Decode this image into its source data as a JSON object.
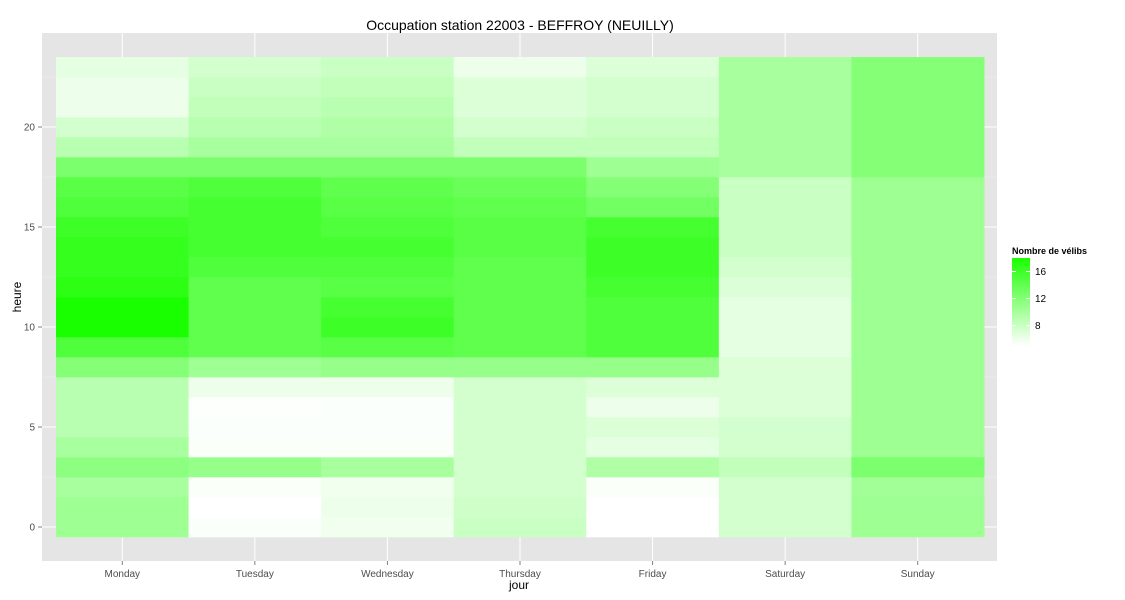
{
  "chart_data": {
    "type": "heatmap",
    "title": "Occupation station 22003 - BEFFROY (NEUILLY)",
    "xlabel": "jour",
    "ylabel": "heure",
    "x_categories": [
      "Monday",
      "Tuesday",
      "Wednesday",
      "Thursday",
      "Friday",
      "Saturday",
      "Sunday"
    ],
    "y_values": [
      0,
      1,
      2,
      3,
      4,
      5,
      6,
      7,
      8,
      9,
      10,
      11,
      12,
      13,
      14,
      15,
      16,
      17,
      18,
      19,
      20,
      21,
      22,
      23
    ],
    "y_ticks": [
      0,
      5,
      10,
      15,
      20
    ],
    "ylim": [
      -0.5,
      23.5
    ],
    "grid": true,
    "legend": {
      "title": "Nombre de vélibs",
      "position": "right",
      "ticks": [
        8,
        12,
        16
      ],
      "range": [
        5,
        18
      ],
      "color_low": "#ffffff",
      "color_high": "#1aff00"
    },
    "background_color": "#e5e5e5",
    "values": [
      [
        10.5,
        5.2,
        5.8,
        8.0,
        5.0,
        7.5,
        10.5
      ],
      [
        10.5,
        5.0,
        6.0,
        7.8,
        5.0,
        7.5,
        10.5
      ],
      [
        10.0,
        5.3,
        5.8,
        7.5,
        5.3,
        7.5,
        10.3
      ],
      [
        11.5,
        11.0,
        10.0,
        7.5,
        9.5,
        8.5,
        12.5
      ],
      [
        10.0,
        5.3,
        5.3,
        7.5,
        6.5,
        7.5,
        10.5
      ],
      [
        9.0,
        5.2,
        5.2,
        7.5,
        7.0,
        7.5,
        10.5
      ],
      [
        9.0,
        5.1,
        5.2,
        7.5,
        6.0,
        7.0,
        10.5
      ],
      [
        9.0,
        6.0,
        6.0,
        7.5,
        7.0,
        7.0,
        10.5
      ],
      [
        12.0,
        10.5,
        11.0,
        11.0,
        11.0,
        7.0,
        10.5
      ],
      [
        15.0,
        14.0,
        14.5,
        14.0,
        15.0,
        6.5,
        10.5
      ],
      [
        18.0,
        14.0,
        16.0,
        14.0,
        15.0,
        6.5,
        10.5
      ],
      [
        18.0,
        14.0,
        15.5,
        14.0,
        15.0,
        6.5,
        10.5
      ],
      [
        17.0,
        14.0,
        14.5,
        14.0,
        15.5,
        7.0,
        10.5
      ],
      [
        16.5,
        15.0,
        15.0,
        14.0,
        16.0,
        7.5,
        10.5
      ],
      [
        16.5,
        15.5,
        15.5,
        14.5,
        16.0,
        8.0,
        10.5
      ],
      [
        16.0,
        15.5,
        15.0,
        14.5,
        15.5,
        8.0,
        10.5
      ],
      [
        15.0,
        15.5,
        14.5,
        14.0,
        13.0,
        8.0,
        10.5
      ],
      [
        14.5,
        15.0,
        14.0,
        13.5,
        12.0,
        8.0,
        10.5
      ],
      [
        12.5,
        12.5,
        12.5,
        12.5,
        10.5,
        10.0,
        12.0
      ],
      [
        9.0,
        10.0,
        10.0,
        8.5,
        8.5,
        10.0,
        12.0
      ],
      [
        7.5,
        9.0,
        9.5,
        7.5,
        8.0,
        10.0,
        12.0
      ],
      [
        6.0,
        8.5,
        9.0,
        7.0,
        7.5,
        10.0,
        12.0
      ],
      [
        6.0,
        8.0,
        8.5,
        7.0,
        7.5,
        10.0,
        12.0
      ],
      [
        6.5,
        7.5,
        8.0,
        6.0,
        7.0,
        10.0,
        12.0
      ]
    ]
  }
}
